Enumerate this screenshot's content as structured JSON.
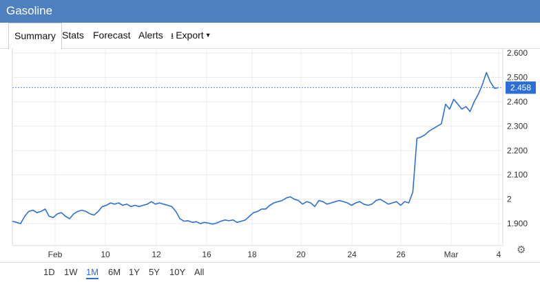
{
  "window": {
    "title": "Gasoline"
  },
  "tabs": [
    {
      "label": "Summary",
      "active": true
    },
    {
      "label": "Stats"
    },
    {
      "label": "Forecast"
    },
    {
      "label": "Alerts"
    },
    {
      "label": "Export"
    }
  ],
  "range": {
    "buttons": [
      "1D",
      "1W",
      "1M",
      "6M",
      "1Y",
      "5Y",
      "10Y",
      "All"
    ],
    "selected": "1M"
  },
  "icons": {
    "export": "download-icon",
    "settings": "gear-icon"
  },
  "colors": {
    "titlebar": "#4f7fbf",
    "line": "#2b6fd6",
    "last_price_bg": "#2b6fd6"
  },
  "chart_data": {
    "type": "line",
    "title": "",
    "xlabel": "",
    "ylabel": "",
    "x_tick_labels": [
      "Feb",
      "10",
      "12",
      "16",
      "18",
      "20",
      "24",
      "26",
      "Mar",
      "4"
    ],
    "y_tick_labels": [
      "1.900",
      "2",
      "2.100",
      "2.200",
      "2.300",
      "2.400",
      "2.500",
      "2.600"
    ],
    "ylim": [
      1.81,
      2.62
    ],
    "last_value": 2.458,
    "last_value_label": "2.458",
    "grid": true,
    "series": [
      {
        "values": [
          1.91,
          1.905,
          1.9,
          1.93,
          1.95,
          1.955,
          1.945,
          1.95,
          1.96,
          1.93,
          1.925,
          1.94,
          1.945,
          1.93,
          1.92,
          1.94,
          1.95,
          1.955,
          1.95,
          1.94,
          1.935,
          1.95,
          1.97,
          1.975,
          1.985,
          1.98,
          1.985,
          1.975,
          1.98,
          1.97,
          1.975,
          1.97,
          1.975,
          1.98,
          1.99,
          1.98,
          1.985,
          1.98,
          1.975,
          1.97,
          1.95,
          1.92,
          1.91,
          1.912,
          1.905,
          1.908,
          1.9,
          1.905,
          1.902,
          1.898,
          1.902,
          1.91,
          1.915,
          1.912,
          1.915,
          1.905,
          1.91,
          1.915,
          1.93,
          1.945,
          1.95,
          1.96,
          1.96,
          1.975,
          1.985,
          1.99,
          1.995,
          2.005,
          2.01,
          2.0,
          1.995,
          1.98,
          1.99,
          1.985,
          1.97,
          1.995,
          1.99,
          1.98,
          1.985,
          1.99,
          1.995,
          1.99,
          1.985,
          1.975,
          1.985,
          1.99,
          1.98,
          1.975,
          1.98,
          1.995,
          2.0,
          1.99,
          1.98,
          1.985,
          1.99,
          1.975,
          1.99,
          1.985,
          2.03,
          2.25,
          2.255,
          2.265,
          2.28,
          2.29,
          2.3,
          2.31,
          2.39,
          2.37,
          2.41,
          2.39,
          2.37,
          2.38,
          2.36,
          2.4,
          2.43,
          2.47,
          2.52,
          2.48,
          2.455,
          2.458
        ]
      }
    ]
  }
}
